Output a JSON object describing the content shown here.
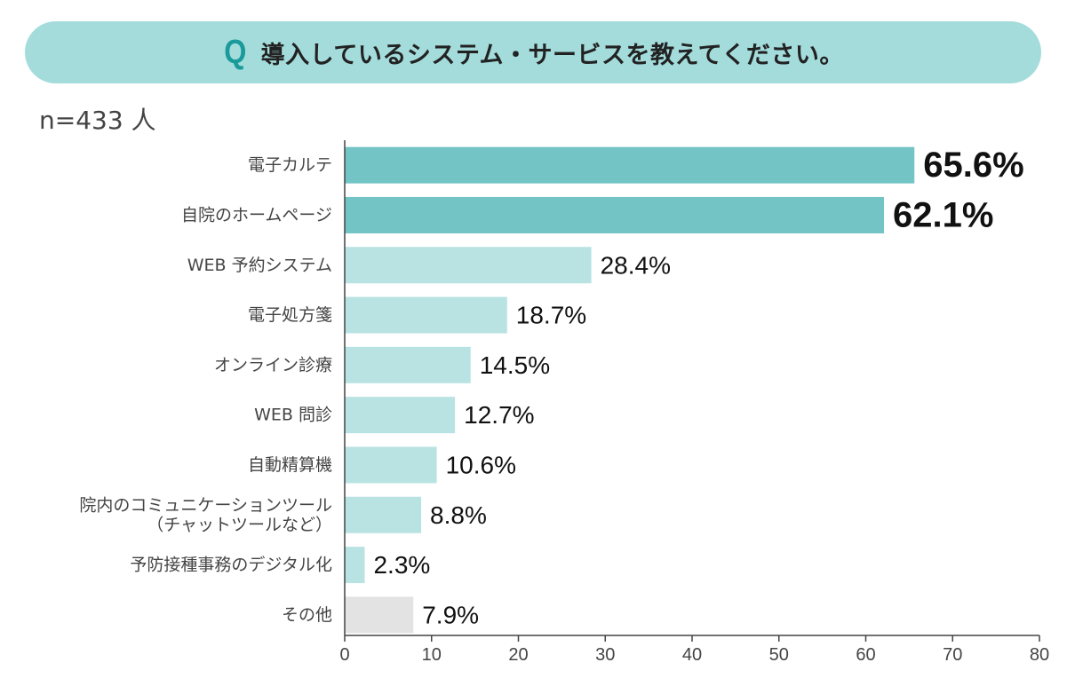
{
  "header": {
    "q_mark": "Q",
    "title": "導入しているシステム・サービスを教えてください。"
  },
  "sample_note": "n=433 人",
  "colors": {
    "banner": "#a4dcdc",
    "q_mark": "#1a9a9a",
    "top_bar": "#72c4c5",
    "light_bar": "#b9e3e2",
    "other_bar": "#e3e3e3",
    "axis": "#444444"
  },
  "chart_data": {
    "type": "bar",
    "orientation": "horizontal",
    "categories": [
      [
        "電子カルテ"
      ],
      [
        "自院のホームページ"
      ],
      [
        "WEB 予約システム"
      ],
      [
        "電子処方箋"
      ],
      [
        "オンライン診療"
      ],
      [
        "WEB 問診"
      ],
      [
        "自動精算機"
      ],
      [
        "院内のコミュニケーションツール",
        "（チャットツールなど）"
      ],
      [
        "予防接種事務のデジタル化"
      ],
      [
        "その他"
      ]
    ],
    "values": [
      65.6,
      62.1,
      28.4,
      18.7,
      14.5,
      12.7,
      10.6,
      8.8,
      2.3,
      7.9
    ],
    "value_labels": [
      "65.6%",
      "62.1%",
      "28.4%",
      "18.7%",
      "14.5%",
      "12.7%",
      "10.6%",
      "8.8%",
      "2.3%",
      "7.9%"
    ],
    "highlight": [
      true,
      true,
      false,
      false,
      false,
      false,
      false,
      false,
      false,
      false
    ],
    "is_other": [
      false,
      false,
      false,
      false,
      false,
      false,
      false,
      false,
      false,
      true
    ],
    "xlim": [
      0,
      80
    ],
    "xticks": [
      0,
      10,
      20,
      30,
      40,
      50,
      60,
      70,
      80
    ],
    "grid": false
  }
}
